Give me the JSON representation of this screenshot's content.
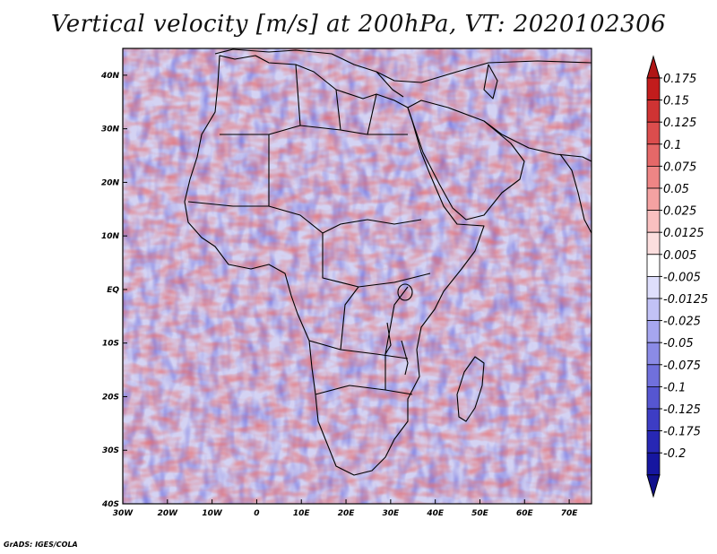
{
  "title": "Vertical velocity [m/s] at 200hPa, VT: 2020102306",
  "map": {
    "lon_range": [
      -30,
      75
    ],
    "lat_range": [
      -40,
      45
    ],
    "lat_ticks": [
      {
        "lat": 40,
        "label": "40N"
      },
      {
        "lat": 30,
        "label": "30N"
      },
      {
        "lat": 20,
        "label": "20N"
      },
      {
        "lat": 10,
        "label": "10N"
      },
      {
        "lat": 0,
        "label": "EQ"
      },
      {
        "lat": -10,
        "label": "10S"
      },
      {
        "lat": -20,
        "label": "20S"
      },
      {
        "lat": -30,
        "label": "30S"
      },
      {
        "lat": -40,
        "label": "40S"
      }
    ],
    "lon_ticks": [
      {
        "lon": -30,
        "label": "30W"
      },
      {
        "lon": -20,
        "label": "20W"
      },
      {
        "lon": -10,
        "label": "10W"
      },
      {
        "lon": 0,
        "label": "0"
      },
      {
        "lon": 10,
        "label": "10E"
      },
      {
        "lon": 20,
        "label": "20E"
      },
      {
        "lon": 30,
        "label": "30E"
      },
      {
        "lon": 40,
        "label": "40E"
      },
      {
        "lon": 50,
        "label": "50E"
      },
      {
        "lon": 60,
        "label": "60E"
      },
      {
        "lon": 70,
        "label": "70E"
      }
    ]
  },
  "colorbar": {
    "levels": [
      {
        "label": "0.175",
        "color": "#c21c1c"
      },
      {
        "label": "0.15",
        "color": "#cf3333"
      },
      {
        "label": "0.125",
        "color": "#db4d4d"
      },
      {
        "label": "0.1",
        "color": "#e56868"
      },
      {
        "label": "0.075",
        "color": "#ee8585"
      },
      {
        "label": "0.05",
        "color": "#f4a2a2"
      },
      {
        "label": "0.025",
        "color": "#f9c0c0"
      },
      {
        "label": "0.0125",
        "color": "#fcdede"
      },
      {
        "label": "0.005",
        "color": "#ffffff"
      },
      {
        "label": "-0.005",
        "color": "#dedefc"
      },
      {
        "label": "-0.0125",
        "color": "#c2c2f6"
      },
      {
        "label": "-0.025",
        "color": "#a6a6ef"
      },
      {
        "label": "-0.05",
        "color": "#8b8be6"
      },
      {
        "label": "-0.075",
        "color": "#7070dc"
      },
      {
        "label": "-0.1",
        "color": "#5656d1"
      },
      {
        "label": "-0.125",
        "color": "#3d3dc4"
      },
      {
        "label": "-0.175",
        "color": "#2727b4"
      },
      {
        "label": "-0.2",
        "color": "#1616a0"
      }
    ],
    "top_arrow_color": "#b01515",
    "bottom_arrow_color": "#10108c"
  },
  "credit": "GrADS: IGES/COLA"
}
